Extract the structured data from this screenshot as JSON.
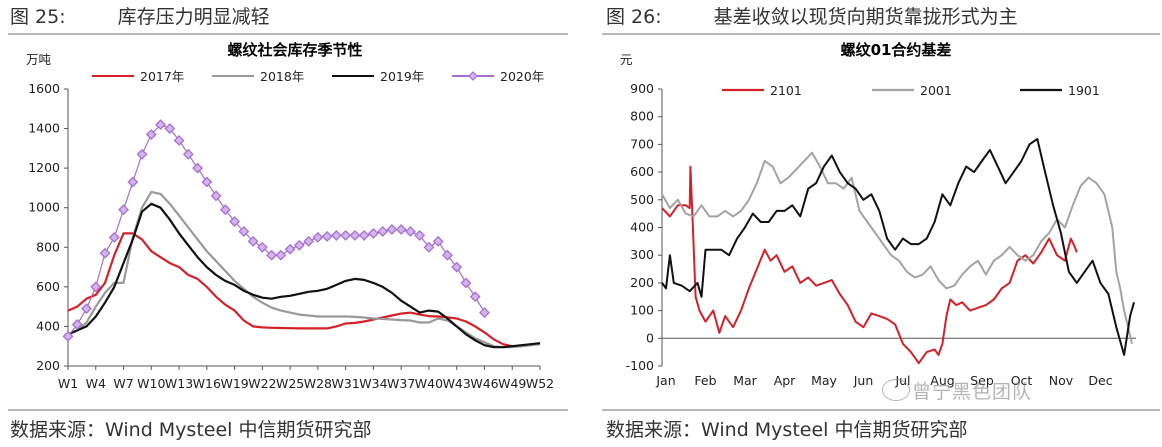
{
  "figures": [
    {
      "fig_label": "图 25:",
      "fig_title": "库存压力明显减轻",
      "source": "数据来源：Wind Mysteel  中信期货研究部"
    },
    {
      "fig_label": "图 26:",
      "fig_title": "基差收敛以现货向期货靠拢形式为主",
      "source": "数据来源：Wind Mysteel  中信期货研究部"
    }
  ],
  "watermark": "曾宁黑色团队",
  "chart_data": [
    {
      "type": "line",
      "title": "螺纹社会库存季节性",
      "ylabel": "万吨",
      "xlabel": "",
      "ylim": [
        200,
        1600
      ],
      "yticks": [
        200,
        400,
        600,
        800,
        1000,
        1200,
        1400,
        1600
      ],
      "xticks": [
        "W1",
        "W4",
        "W7",
        "W10",
        "W13",
        "W16",
        "W19",
        "W22",
        "W25",
        "W28",
        "W31",
        "W34",
        "W37",
        "W40",
        "W43",
        "W46",
        "W49",
        "W52"
      ],
      "legend_position": "top",
      "series": [
        {
          "name": "2017年",
          "color": "#d62027",
          "marker": "none",
          "x": [
            1,
            2,
            3,
            4,
            5,
            6,
            7,
            8,
            9,
            10,
            11,
            12,
            13,
            14,
            15,
            16,
            17,
            18,
            19,
            20,
            21,
            22,
            23,
            24,
            25,
            26,
            27,
            28,
            29,
            30,
            31,
            32,
            33,
            34,
            35,
            36,
            37,
            38,
            39,
            40,
            41,
            42,
            43,
            44,
            45,
            46,
            47,
            48,
            49,
            50,
            51,
            52
          ],
          "values": [
            480,
            500,
            540,
            560,
            620,
            760,
            870,
            870,
            840,
            780,
            750,
            720,
            700,
            660,
            640,
            600,
            550,
            510,
            480,
            430,
            400,
            395,
            393,
            392,
            391,
            390,
            390,
            390,
            390,
            400,
            415,
            418,
            425,
            435,
            445,
            455,
            465,
            470,
            460,
            452,
            450,
            446,
            440,
            425,
            400,
            370,
            335,
            310,
            300,
            300,
            305,
            315
          ]
        },
        {
          "name": "2018年",
          "color": "#999999",
          "marker": "none",
          "x": [
            1,
            2,
            3,
            4,
            5,
            6,
            7,
            8,
            9,
            10,
            11,
            12,
            13,
            14,
            15,
            16,
            17,
            18,
            19,
            20,
            21,
            22,
            23,
            24,
            25,
            26,
            27,
            28,
            29,
            30,
            31,
            32,
            33,
            34,
            35,
            36,
            37,
            38,
            39,
            40,
            41,
            42,
            43,
            44,
            45,
            46,
            47,
            48,
            49,
            50,
            51,
            52
          ],
          "values": [
            360,
            380,
            420,
            500,
            570,
            620,
            620,
            850,
            1000,
            1080,
            1070,
            1020,
            960,
            900,
            840,
            780,
            730,
            680,
            630,
            590,
            550,
            520,
            495,
            480,
            470,
            460,
            455,
            450,
            450,
            450,
            450,
            448,
            445,
            440,
            438,
            435,
            432,
            430,
            420,
            420,
            440,
            430,
            400,
            370,
            340,
            320,
            300,
            295,
            295,
            300,
            305,
            310
          ]
        },
        {
          "name": "2019年",
          "color": "#111111",
          "marker": "none",
          "x": [
            1,
            2,
            3,
            4,
            5,
            6,
            7,
            8,
            9,
            10,
            11,
            12,
            13,
            14,
            15,
            16,
            17,
            18,
            19,
            20,
            21,
            22,
            23,
            24,
            25,
            26,
            27,
            28,
            29,
            30,
            31,
            32,
            33,
            34,
            35,
            36,
            37,
            38,
            39,
            40,
            41,
            42,
            43,
            44,
            45,
            46,
            47,
            48,
            49,
            50,
            51,
            52
          ],
          "values": [
            360,
            380,
            400,
            450,
            520,
            600,
            720,
            840,
            980,
            1020,
            1000,
            940,
            870,
            810,
            750,
            700,
            660,
            630,
            610,
            580,
            560,
            545,
            540,
            550,
            555,
            565,
            575,
            580,
            590,
            610,
            630,
            640,
            635,
            620,
            600,
            570,
            530,
            500,
            470,
            480,
            475,
            440,
            400,
            360,
            330,
            305,
            295,
            295,
            300,
            305,
            310,
            315
          ]
        },
        {
          "name": "2020年",
          "color": "#a66fd1",
          "marker": "diamond",
          "x": [
            1,
            2,
            3,
            4,
            5,
            6,
            7,
            8,
            9,
            10,
            11,
            12,
            13,
            14,
            15,
            16,
            17,
            18,
            19,
            20,
            21,
            22,
            23,
            24,
            25,
            26,
            27,
            28,
            29,
            30,
            31,
            32,
            33,
            34,
            35,
            36,
            37,
            38,
            39,
            40,
            41,
            42,
            43,
            44,
            45,
            46
          ],
          "values": [
            350,
            410,
            490,
            600,
            770,
            850,
            990,
            1130,
            1270,
            1370,
            1420,
            1400,
            1340,
            1270,
            1200,
            1130,
            1060,
            990,
            930,
            880,
            830,
            800,
            760,
            760,
            790,
            810,
            830,
            850,
            855,
            860,
            860,
            860,
            860,
            870,
            880,
            890,
            890,
            880,
            860,
            800,
            830,
            760,
            700,
            620,
            550,
            470
          ]
        }
      ]
    },
    {
      "type": "line",
      "title": "螺纹01合约基差",
      "ylabel": "元",
      "xlabel": "",
      "ylim": [
        -100,
        900
      ],
      "yticks": [
        -100,
        0,
        100,
        200,
        300,
        400,
        500,
        600,
        700,
        800,
        900
      ],
      "xticks": [
        "Jan",
        "Feb",
        "Mar",
        "Apr",
        "May",
        "Jun",
        "Jul",
        "Aug",
        "Sep",
        "Oct",
        "Nov",
        "Dec"
      ],
      "legend_position": "top",
      "series": [
        {
          "name": "2101",
          "color": "#d62027",
          "x": [
            0,
            0.2,
            0.4,
            0.5,
            0.6,
            0.7,
            0.72,
            0.78,
            0.85,
            0.95,
            1.1,
            1.3,
            1.45,
            1.6,
            1.8,
            2.0,
            2.2,
            2.4,
            2.6,
            2.75,
            2.9,
            3.1,
            3.3,
            3.5,
            3.7,
            3.9,
            4.1,
            4.3,
            4.5,
            4.7,
            4.9,
            5.1,
            5.3,
            5.5,
            5.7,
            5.9,
            6.1,
            6.3,
            6.5,
            6.7,
            6.9,
            7.0,
            7.1,
            7.2,
            7.3,
            7.45,
            7.6,
            7.8,
            8.0,
            8.2,
            8.4,
            8.6,
            8.8,
            9.0,
            9.2,
            9.4,
            9.6,
            9.8,
            10.0,
            10.2,
            10.35,
            10.45,
            10.5
          ],
          "values": [
            470,
            440,
            480,
            480,
            480,
            470,
            620,
            410,
            150,
            100,
            60,
            100,
            20,
            80,
            40,
            100,
            180,
            250,
            320,
            280,
            300,
            240,
            260,
            200,
            220,
            190,
            200,
            210,
            160,
            120,
            60,
            40,
            90,
            80,
            70,
            50,
            -20,
            -50,
            -90,
            -50,
            -40,
            -60,
            -20,
            80,
            140,
            120,
            130,
            100,
            110,
            120,
            140,
            180,
            200,
            280,
            300,
            270,
            310,
            360,
            300,
            280,
            360,
            330,
            310
          ]
        },
        {
          "name": "2001",
          "color": "#a3a3a3",
          "x": [
            0,
            0.2,
            0.4,
            0.6,
            0.8,
            1.0,
            1.2,
            1.4,
            1.6,
            1.8,
            2.0,
            2.2,
            2.4,
            2.6,
            2.8,
            3.0,
            3.2,
            3.4,
            3.6,
            3.8,
            4.0,
            4.2,
            4.4,
            4.6,
            4.8,
            5.0,
            5.2,
            5.4,
            5.6,
            5.8,
            6.0,
            6.2,
            6.4,
            6.6,
            6.8,
            7.0,
            7.2,
            7.4,
            7.6,
            7.8,
            8.0,
            8.2,
            8.4,
            8.6,
            8.8,
            9.0,
            9.2,
            9.4,
            9.6,
            9.8,
            10.0,
            10.2,
            10.4,
            10.6,
            10.8,
            11.0,
            11.2,
            11.4,
            11.5,
            11.6,
            11.7,
            11.8,
            11.9
          ],
          "values": [
            520,
            470,
            500,
            450,
            440,
            480,
            440,
            440,
            460,
            440,
            460,
            500,
            560,
            640,
            620,
            560,
            580,
            610,
            640,
            670,
            620,
            560,
            560,
            540,
            580,
            460,
            420,
            380,
            340,
            300,
            280,
            240,
            220,
            230,
            260,
            210,
            180,
            190,
            230,
            260,
            280,
            230,
            280,
            300,
            330,
            300,
            280,
            300,
            350,
            380,
            430,
            400,
            480,
            550,
            580,
            560,
            520,
            400,
            240,
            180,
            100,
            40,
            -20
          ]
        },
        {
          "name": "1901",
          "color": "#111111",
          "x": [
            0,
            0.1,
            0.2,
            0.3,
            0.5,
            0.7,
            0.9,
            1.0,
            1.1,
            1.3,
            1.5,
            1.7,
            1.9,
            2.1,
            2.3,
            2.5,
            2.7,
            2.9,
            3.1,
            3.3,
            3.5,
            3.7,
            3.9,
            4.1,
            4.3,
            4.5,
            4.7,
            4.9,
            5.1,
            5.3,
            5.5,
            5.7,
            5.9,
            6.1,
            6.3,
            6.5,
            6.7,
            6.9,
            7.1,
            7.3,
            7.5,
            7.7,
            7.9,
            8.1,
            8.3,
            8.5,
            8.7,
            8.9,
            9.1,
            9.3,
            9.5,
            9.7,
            9.9,
            10.1,
            10.3,
            10.5,
            10.7,
            10.9,
            11.1,
            11.3,
            11.5,
            11.7,
            11.85,
            11.95
          ],
          "values": [
            200,
            180,
            300,
            200,
            190,
            170,
            200,
            150,
            320,
            320,
            320,
            300,
            360,
            400,
            450,
            420,
            420,
            460,
            460,
            480,
            440,
            540,
            560,
            620,
            660,
            600,
            560,
            540,
            500,
            520,
            460,
            360,
            320,
            360,
            340,
            340,
            360,
            420,
            520,
            480,
            560,
            620,
            600,
            640,
            680,
            620,
            560,
            600,
            640,
            700,
            720,
            600,
            480,
            380,
            240,
            200,
            240,
            280,
            200,
            160,
            40,
            -60,
            80,
            130
          ]
        }
      ]
    }
  ]
}
